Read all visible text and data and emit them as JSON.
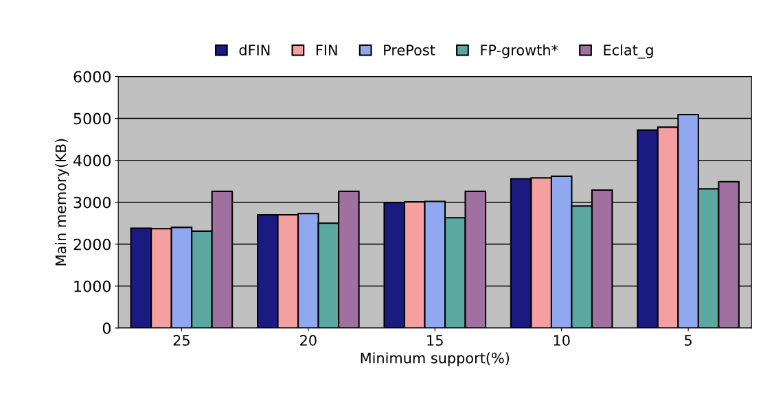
{
  "chart_data": {
    "type": "bar",
    "xlabel": "Minimum support(%)",
    "ylabel": "Main memory(KB)",
    "categories": [
      "25",
      "20",
      "15",
      "10",
      "5"
    ],
    "series": [
      {
        "name": "dFIN",
        "color": "#1a1a80",
        "values": [
          2380,
          2700,
          2990,
          3560,
          4720
        ]
      },
      {
        "name": "FIN",
        "color": "#f4a0a0",
        "values": [
          2370,
          2700,
          3010,
          3580,
          4790
        ]
      },
      {
        "name": "PrePost",
        "color": "#8fa8f0",
        "values": [
          2400,
          2730,
          3020,
          3620,
          5090
        ]
      },
      {
        "name": "FP-growth*",
        "color": "#5aa8a0",
        "values": [
          2310,
          2500,
          2630,
          2910,
          3320
        ]
      },
      {
        "name": "Eclat_g",
        "color": "#a070a0",
        "values": [
          3260,
          3260,
          3260,
          3290,
          3490
        ]
      }
    ],
    "ylim": [
      0,
      6000
    ],
    "yticks": [
      0,
      1000,
      2000,
      3000,
      4000,
      5000,
      6000
    ],
    "grid": "y",
    "legend": "top"
  }
}
